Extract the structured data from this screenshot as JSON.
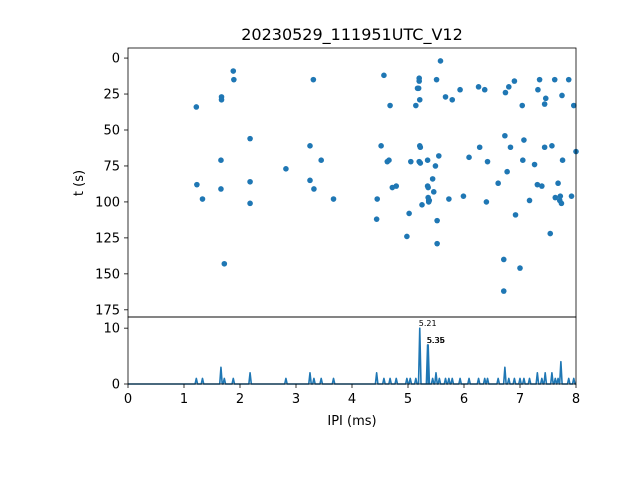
{
  "chart_data": [
    {
      "type": "scatter",
      "title": "20230529_111951UTC_V12",
      "xlabel": "",
      "ylabel": "t (s)",
      "xlim": [
        0,
        8
      ],
      "ylim": [
        180,
        -7
      ],
      "y_inverted": true,
      "yticks": [
        0,
        25,
        50,
        75,
        100,
        125,
        150,
        175
      ],
      "color": "#1f77b4",
      "points": [
        [
          1.22,
          34
        ],
        [
          1.23,
          88
        ],
        [
          1.33,
          98
        ],
        [
          1.67,
          27
        ],
        [
          1.67,
          29
        ],
        [
          1.66,
          71
        ],
        [
          1.66,
          91
        ],
        [
          1.72,
          143
        ],
        [
          1.88,
          9
        ],
        [
          1.89,
          15
        ],
        [
          2.18,
          56
        ],
        [
          2.18,
          86
        ],
        [
          2.18,
          101
        ],
        [
          2.82,
          77
        ],
        [
          3.25,
          61
        ],
        [
          3.25,
          85
        ],
        [
          3.31,
          15
        ],
        [
          3.32,
          91
        ],
        [
          3.45,
          71
        ],
        [
          3.67,
          98
        ],
        [
          4.45,
          98
        ],
        [
          4.44,
          112
        ],
        [
          4.52,
          61
        ],
        [
          4.57,
          12
        ],
        [
          4.63,
          72
        ],
        [
          4.66,
          71
        ],
        [
          4.68,
          33
        ],
        [
          4.72,
          90
        ],
        [
          4.79,
          89
        ],
        [
          4.98,
          124
        ],
        [
          5.02,
          108
        ],
        [
          5.05,
          72
        ],
        [
          5.14,
          33
        ],
        [
          5.17,
          21
        ],
        [
          5.2,
          14
        ],
        [
          5.21,
          29
        ],
        [
          5.19,
          21
        ],
        [
          5.2,
          16
        ],
        [
          5.21,
          61
        ],
        [
          5.2,
          72
        ],
        [
          5.22,
          62
        ],
        [
          5.22,
          73
        ],
        [
          5.25,
          102
        ],
        [
          5.35,
          89
        ],
        [
          5.36,
          90
        ],
        [
          5.35,
          71
        ],
        [
          5.36,
          97
        ],
        [
          5.37,
          100
        ],
        [
          5.38,
          99
        ],
        [
          5.37,
          99
        ],
        [
          5.44,
          84
        ],
        [
          5.46,
          93
        ],
        [
          5.49,
          75
        ],
        [
          5.51,
          15
        ],
        [
          5.52,
          113
        ],
        [
          5.52,
          129
        ],
        [
          5.55,
          68
        ],
        [
          5.58,
          2
        ],
        [
          5.67,
          27
        ],
        [
          5.73,
          98
        ],
        [
          5.79,
          29
        ],
        [
          5.93,
          22
        ],
        [
          5.99,
          96
        ],
        [
          6.09,
          69
        ],
        [
          6.26,
          20
        ],
        [
          6.28,
          62
        ],
        [
          6.4,
          100
        ],
        [
          6.37,
          22
        ],
        [
          6.42,
          72
        ],
        [
          6.61,
          87
        ],
        [
          6.71,
          162
        ],
        [
          6.71,
          140
        ],
        [
          6.73,
          54
        ],
        [
          6.74,
          24
        ],
        [
          6.77,
          79
        ],
        [
          6.8,
          20
        ],
        [
          6.83,
          62
        ],
        [
          6.9,
          16
        ],
        [
          6.92,
          109
        ],
        [
          7.0,
          146
        ],
        [
          7.04,
          33
        ],
        [
          7.05,
          71
        ],
        [
          7.07,
          57
        ],
        [
          7.17,
          99
        ],
        [
          7.26,
          74
        ],
        [
          7.31,
          88
        ],
        [
          7.32,
          22
        ],
        [
          7.35,
          15
        ],
        [
          7.39,
          89
        ],
        [
          7.44,
          32
        ],
        [
          7.46,
          28
        ],
        [
          7.44,
          62
        ],
        [
          7.54,
          122
        ],
        [
          7.57,
          61
        ],
        [
          7.62,
          15
        ],
        [
          7.63,
          97
        ],
        [
          7.68,
          87
        ],
        [
          7.71,
          99
        ],
        [
          7.72,
          96
        ],
        [
          7.75,
          26
        ],
        [
          7.74,
          101
        ],
        [
          7.76,
          71
        ],
        [
          7.87,
          15
        ],
        [
          7.92,
          96
        ],
        [
          7.96,
          33
        ],
        [
          8.0,
          65
        ]
      ]
    },
    {
      "type": "line",
      "title": "",
      "xlabel": "IPI (ms)",
      "ylabel": "",
      "xlim": [
        0,
        8
      ],
      "ylim": [
        0,
        12
      ],
      "xticks": [
        0,
        1,
        2,
        3,
        4,
        5,
        6,
        7,
        8
      ],
      "yticks": [
        0,
        10
      ],
      "color": "#1f77b4",
      "peaks": [
        [
          1.22,
          1
        ],
        [
          1.33,
          1
        ],
        [
          1.66,
          3
        ],
        [
          1.72,
          1
        ],
        [
          1.88,
          1
        ],
        [
          2.18,
          2
        ],
        [
          2.82,
          1
        ],
        [
          3.25,
          2
        ],
        [
          3.32,
          1
        ],
        [
          3.45,
          1
        ],
        [
          3.67,
          1
        ],
        [
          4.44,
          2
        ],
        [
          4.57,
          1
        ],
        [
          4.68,
          1
        ],
        [
          4.79,
          1
        ],
        [
          4.98,
          1
        ],
        [
          5.04,
          1
        ],
        [
          5.14,
          1
        ],
        [
          5.21,
          10
        ],
        [
          5.35,
          7
        ],
        [
          5.36,
          7
        ],
        [
          5.44,
          1
        ],
        [
          5.5,
          2
        ],
        [
          5.56,
          1
        ],
        [
          5.67,
          1
        ],
        [
          5.73,
          1
        ],
        [
          5.79,
          1
        ],
        [
          5.93,
          1
        ],
        [
          6.09,
          1
        ],
        [
          6.26,
          1
        ],
        [
          6.37,
          1
        ],
        [
          6.42,
          1
        ],
        [
          6.61,
          1
        ],
        [
          6.73,
          3
        ],
        [
          6.8,
          1
        ],
        [
          6.9,
          1
        ],
        [
          7.0,
          1
        ],
        [
          7.07,
          1
        ],
        [
          7.17,
          1
        ],
        [
          7.31,
          2
        ],
        [
          7.39,
          1
        ],
        [
          7.45,
          2
        ],
        [
          7.57,
          2
        ],
        [
          7.63,
          1
        ],
        [
          7.68,
          1
        ],
        [
          7.73,
          4
        ],
        [
          7.87,
          1
        ],
        [
          7.96,
          1
        ]
      ],
      "annotations": [
        {
          "x": 5.21,
          "y": 10,
          "text": "5.21"
        },
        {
          "x": 5.35,
          "y": 7,
          "text": "5.35"
        },
        {
          "x": 5.36,
          "y": 7,
          "text": "5.36"
        }
      ]
    }
  ]
}
